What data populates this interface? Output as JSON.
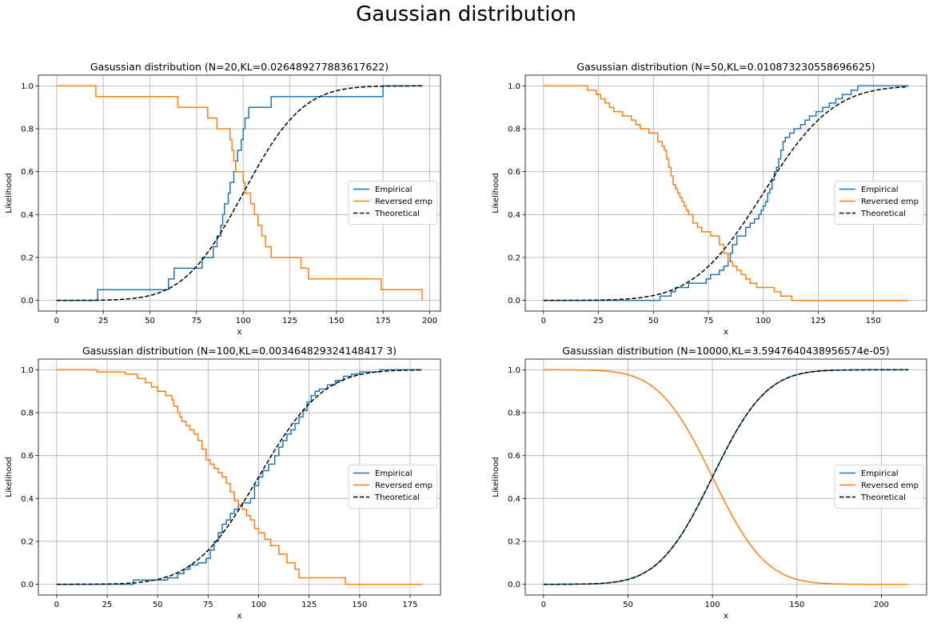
{
  "figure": {
    "suptitle": "Gaussian distribution"
  },
  "chart_data": [
    {
      "type": "line",
      "title": "Gasussian distribution (N=20,KL=0.026489277883617622)",
      "xlabel": "x",
      "ylabel": "Likelihood",
      "xlim": [
        -9.8,
        205.8
      ],
      "ylim": [
        -0.05,
        1.05
      ],
      "xticks": [
        0,
        25,
        50,
        75,
        100,
        125,
        150,
        175,
        200
      ],
      "yticks": [
        0.0,
        0.2,
        0.4,
        0.6,
        0.8,
        1.0
      ],
      "grid": true,
      "legend": {
        "position": "center-right",
        "entries": [
          "Empirical",
          "Reversed emp",
          "Theoretical"
        ]
      },
      "colors": {
        "Empirical": "#1f77b4",
        "Reversed emp": "#ff7f0e",
        "Theoretical": "#000000"
      },
      "theoretical": {
        "mean": 100,
        "std": 25,
        "xmax": 196
      },
      "series": [
        {
          "name": "Empirical",
          "step": true,
          "x": [
            0,
            22,
            60,
            63,
            78,
            84,
            86,
            88,
            89,
            90,
            92,
            93,
            95,
            96,
            97,
            99,
            100,
            101,
            103,
            107,
            115,
            131,
            175,
            196
          ],
          "y": [
            0,
            0.05,
            0.1,
            0.15,
            0.2,
            0.25,
            0.3,
            0.35,
            0.4,
            0.45,
            0.5,
            0.55,
            0.6,
            0.65,
            0.7,
            0.75,
            0.8,
            0.85,
            0.9,
            0.9,
            0.95,
            0.95,
            1.0,
            1.0
          ]
        },
        {
          "name": "Reversed emp",
          "step": true,
          "x": [
            0,
            21,
            65,
            81,
            86,
            93,
            94,
            95,
            96,
            100,
            101,
            104,
            106,
            108,
            110,
            112,
            115,
            131,
            135,
            174,
            196
          ],
          "y": [
            1.0,
            0.95,
            0.9,
            0.85,
            0.8,
            0.75,
            0.7,
            0.65,
            0.6,
            0.55,
            0.5,
            0.45,
            0.4,
            0.35,
            0.3,
            0.25,
            0.2,
            0.15,
            0.1,
            0.05,
            0.0
          ]
        },
        {
          "name": "Theoretical",
          "dashed": true,
          "x": [],
          "y": []
        }
      ]
    },
    {
      "type": "line",
      "title": "Gasussian distribution (N=50,KL=0.010873230558696625)",
      "xlabel": "x",
      "ylabel": "Likelihood",
      "xlim": [
        -8.3,
        174.3
      ],
      "ylim": [
        -0.05,
        1.05
      ],
      "xticks": [
        0,
        25,
        50,
        75,
        100,
        125,
        150
      ],
      "yticks": [
        0.0,
        0.2,
        0.4,
        0.6,
        0.8,
        1.0
      ],
      "grid": true,
      "legend": {
        "position": "center-right",
        "entries": [
          "Empirical",
          "Reversed emp",
          "Theoretical"
        ]
      },
      "colors": {
        "Empirical": "#1f77b4",
        "Reversed emp": "#ff7f0e",
        "Theoretical": "#000000"
      },
      "theoretical": {
        "mean": 100,
        "std": 25,
        "xmax": 166
      },
      "series": [
        {
          "name": "Empirical",
          "step": true,
          "x": [
            0,
            53,
            58,
            60,
            62,
            66,
            70,
            74,
            76,
            78,
            80,
            81,
            82,
            83,
            84,
            85,
            86,
            88,
            90,
            92,
            94,
            96,
            98,
            99,
            100,
            101,
            102,
            103,
            104,
            105,
            106,
            107,
            108,
            109,
            110,
            112,
            114,
            117,
            119,
            121,
            124,
            127,
            130,
            133,
            136,
            140,
            143,
            146,
            150,
            166
          ],
          "y": [
            0.0,
            0.02,
            0.04,
            0.06,
            0.06,
            0.08,
            0.08,
            0.1,
            0.12,
            0.12,
            0.14,
            0.14,
            0.16,
            0.16,
            0.18,
            0.22,
            0.26,
            0.3,
            0.3,
            0.34,
            0.36,
            0.38,
            0.4,
            0.42,
            0.44,
            0.46,
            0.5,
            0.52,
            0.56,
            0.6,
            0.62,
            0.66,
            0.7,
            0.74,
            0.76,
            0.78,
            0.8,
            0.82,
            0.84,
            0.86,
            0.88,
            0.9,
            0.92,
            0.94,
            0.96,
            0.98,
            1.0,
            1.0,
            1.0,
            1.0
          ]
        },
        {
          "name": "Reversed emp",
          "step": true,
          "x": [
            0,
            20,
            24,
            26,
            28,
            30,
            32,
            36,
            40,
            42,
            44,
            48,
            52,
            54,
            55,
            56,
            57,
            58,
            59,
            60,
            61,
            62,
            63,
            64,
            65,
            66,
            68,
            70,
            72,
            76,
            80,
            82,
            84,
            86,
            88,
            90,
            92,
            94,
            97,
            105,
            108,
            113,
            166
          ],
          "y": [
            1.0,
            0.98,
            0.96,
            0.94,
            0.92,
            0.9,
            0.88,
            0.86,
            0.84,
            0.82,
            0.8,
            0.78,
            0.74,
            0.72,
            0.7,
            0.66,
            0.62,
            0.58,
            0.54,
            0.52,
            0.5,
            0.48,
            0.46,
            0.44,
            0.42,
            0.4,
            0.36,
            0.34,
            0.32,
            0.3,
            0.26,
            0.22,
            0.18,
            0.16,
            0.14,
            0.12,
            0.1,
            0.08,
            0.06,
            0.04,
            0.02,
            0.0,
            0.0
          ]
        },
        {
          "name": "Theoretical",
          "dashed": true,
          "x": [],
          "y": []
        }
      ]
    },
    {
      "type": "line",
      "title": "Gasussian distribution (N=100,KL=0.003464829324148417 3)",
      "xlabel": "x",
      "ylabel": "Likelihood",
      "xlim": [
        -9.05,
        190.05
      ],
      "ylim": [
        -0.05,
        1.05
      ],
      "xticks": [
        0,
        25,
        50,
        75,
        100,
        125,
        150,
        175
      ],
      "yticks": [
        0.0,
        0.2,
        0.4,
        0.6,
        0.8,
        1.0
      ],
      "grid": true,
      "legend": {
        "position": "center-right",
        "entries": [
          "Empirical",
          "Reversed emp",
          "Theoretical"
        ]
      },
      "colors": {
        "Empirical": "#1f77b4",
        "Reversed emp": "#ff7f0e",
        "Theoretical": "#000000"
      },
      "theoretical": {
        "mean": 100,
        "std": 25,
        "xmax": 181
      },
      "series": [
        {
          "name": "Empirical",
          "step": true,
          "x": [
            0,
            38,
            55,
            60,
            63,
            66,
            70,
            74,
            76,
            78,
            80,
            82,
            84,
            86,
            88,
            90,
            92,
            96,
            98,
            100,
            102,
            105,
            108,
            110,
            112,
            114,
            116,
            118,
            120,
            122,
            124,
            126,
            128,
            130,
            134,
            138,
            142,
            146,
            150,
            155,
            160,
            170,
            181
          ],
          "y": [
            0.0,
            0.02,
            0.03,
            0.05,
            0.07,
            0.09,
            0.1,
            0.12,
            0.16,
            0.2,
            0.24,
            0.28,
            0.3,
            0.33,
            0.35,
            0.37,
            0.38,
            0.4,
            0.46,
            0.5,
            0.53,
            0.56,
            0.6,
            0.64,
            0.67,
            0.7,
            0.72,
            0.75,
            0.78,
            0.81,
            0.85,
            0.88,
            0.9,
            0.91,
            0.93,
            0.95,
            0.97,
            0.98,
            0.99,
            0.99,
            1.0,
            1.0,
            1.0
          ]
        },
        {
          "name": "Reversed emp",
          "step": true,
          "x": [
            0,
            20,
            34,
            40,
            44,
            47,
            50,
            54,
            57,
            58,
            60,
            61,
            62,
            64,
            66,
            68,
            70,
            72,
            74,
            76,
            78,
            80,
            82,
            84,
            86,
            88,
            90,
            92,
            94,
            96,
            98,
            100,
            103,
            106,
            110,
            114,
            118,
            120,
            143,
            181
          ],
          "y": [
            1.0,
            0.99,
            0.98,
            0.96,
            0.94,
            0.92,
            0.9,
            0.88,
            0.86,
            0.83,
            0.8,
            0.78,
            0.76,
            0.74,
            0.72,
            0.7,
            0.67,
            0.63,
            0.58,
            0.56,
            0.54,
            0.52,
            0.5,
            0.47,
            0.43,
            0.39,
            0.37,
            0.35,
            0.32,
            0.3,
            0.26,
            0.24,
            0.21,
            0.18,
            0.14,
            0.1,
            0.07,
            0.03,
            0.0,
            0.0
          ]
        },
        {
          "name": "Theoretical",
          "dashed": true,
          "x": [],
          "y": []
        }
      ]
    },
    {
      "type": "line",
      "title": "Gasussian distribution (N=10000,KL=3.5947640438956574e-05)",
      "xlabel": "x",
      "ylabel": "Likelihood",
      "xlim": [
        -10.8,
        226.8
      ],
      "ylim": [
        -0.05,
        1.05
      ],
      "xticks": [
        0,
        50,
        100,
        150,
        200
      ],
      "yticks": [
        0.0,
        0.2,
        0.4,
        0.6,
        0.8,
        1.0
      ],
      "grid": true,
      "legend": {
        "position": "center-right",
        "entries": [
          "Empirical",
          "Reversed emp",
          "Theoretical"
        ]
      },
      "colors": {
        "Empirical": "#1f77b4",
        "Reversed emp": "#ff7f0e",
        "Theoretical": "#000000"
      },
      "theoretical": {
        "mean": 100,
        "std": 25,
        "xmax": 216
      },
      "series": [
        {
          "name": "Empirical",
          "smooth": true,
          "x": [],
          "y": []
        },
        {
          "name": "Reversed emp",
          "smooth": true,
          "x": [],
          "y": []
        },
        {
          "name": "Theoretical",
          "dashed": true,
          "x": [],
          "y": []
        }
      ]
    }
  ]
}
